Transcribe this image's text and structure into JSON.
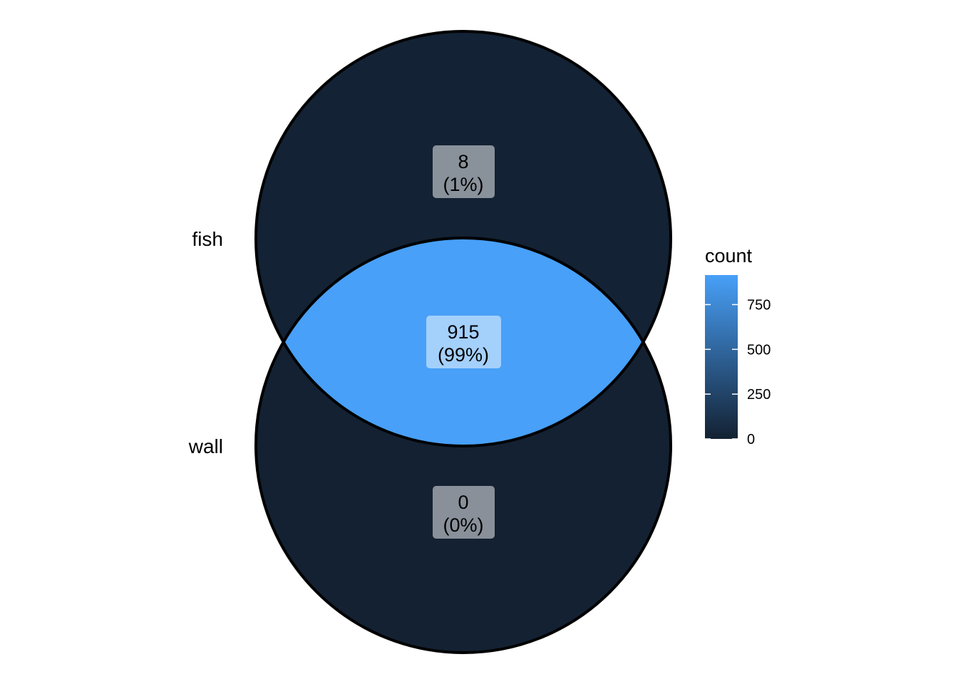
{
  "chart_data": {
    "type": "venn",
    "sets": [
      {
        "name": "fish"
      },
      {
        "name": "wall"
      }
    ],
    "regions": [
      {
        "id": "fish_only",
        "count": 8,
        "percent": "1%",
        "count_label": "8",
        "percent_label": "(1%)"
      },
      {
        "id": "fish_wall",
        "count": 915,
        "percent": "99%",
        "count_label": "915",
        "percent_label": "(99%)"
      },
      {
        "id": "wall_only",
        "count": 0,
        "percent": "0%",
        "count_label": "0",
        "percent_label": "(0%)"
      }
    ],
    "legend": {
      "title": "count",
      "placement": "right",
      "range": [
        0,
        915
      ],
      "ticks": [
        0,
        250,
        500,
        750
      ],
      "tick_labels": [
        "0",
        "250",
        "500",
        "750"
      ],
      "color_low": "#132132",
      "color_high": "#48A0F8"
    }
  },
  "colors": {
    "outline": "#000000",
    "label_box_fill": "#ffffff",
    "label_box_opacity": 0.5
  }
}
